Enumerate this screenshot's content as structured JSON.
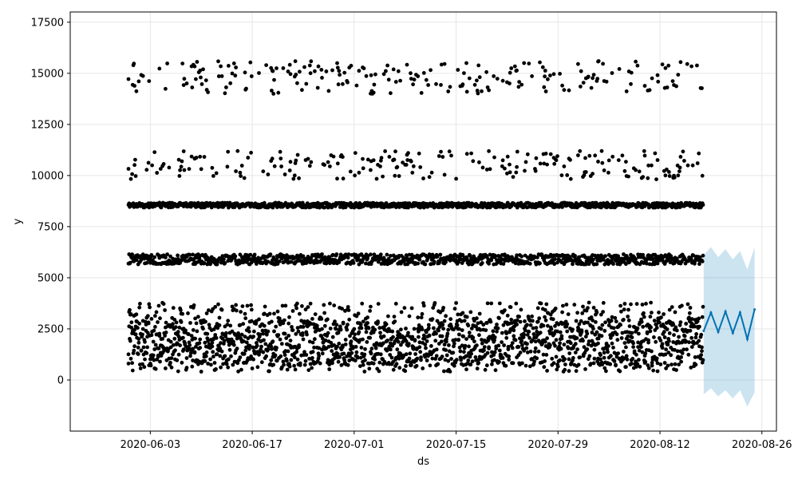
{
  "chart_data": {
    "type": "scatter",
    "title": "",
    "xlabel": "ds",
    "ylabel": "y",
    "xlim": [
      "2020-05-23",
      "2020-08-28"
    ],
    "ylim": [
      -2500,
      18000
    ],
    "grid": true,
    "xticks": [
      "2020-06-03",
      "2020-06-17",
      "2020-07-01",
      "2020-07-15",
      "2020-07-29",
      "2020-08-12",
      "2020-08-26"
    ],
    "yticks": [
      0,
      2500,
      5000,
      7500,
      10000,
      12500,
      15000,
      17500
    ],
    "colors": {
      "observed": "#000000",
      "forecast": "#0072B2",
      "uncertainty": "#0072B2"
    },
    "observed_range": [
      "2020-05-31",
      "2020-08-18"
    ],
    "observed_bands": [
      {
        "name": "",
        "center": 1800,
        "spread": 1100
      },
      {
        "name": "",
        "center": 5900,
        "spread": 250
      },
      {
        "name": "",
        "center": 8550,
        "spread": 120
      },
      {
        "name": "",
        "center": 10500,
        "spread": 700
      },
      {
        "name": "",
        "center": 14800,
        "spread": 800
      }
    ],
    "forecast": {
      "x": [
        "2020-08-18",
        "2020-08-19",
        "2020-08-20",
        "2020-08-21",
        "2020-08-22",
        "2020-08-23",
        "2020-08-24",
        "2020-08-25"
      ],
      "yhat": [
        2400,
        3300,
        2350,
        3350,
        2300,
        3300,
        2000,
        3450
      ],
      "yhat_lower": [
        -700,
        -400,
        -800,
        -500,
        -900,
        -500,
        -1300,
        -600
      ],
      "yhat_upper": [
        6100,
        6500,
        6000,
        6400,
        5900,
        6300,
        5400,
        6500
      ]
    }
  }
}
